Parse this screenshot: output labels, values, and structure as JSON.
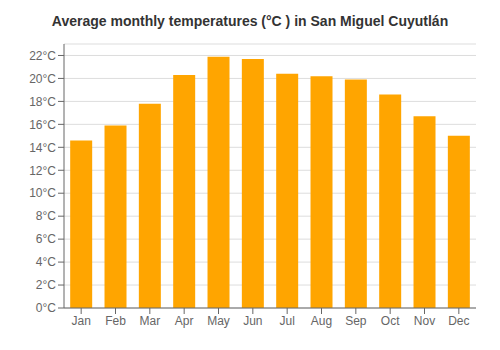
{
  "chart_data": {
    "type": "bar",
    "title": "Average monthly temperatures (°C ) in San Miguel Cuyutlán",
    "categories": [
      "Jan",
      "Feb",
      "Mar",
      "Apr",
      "May",
      "Jun",
      "Jul",
      "Aug",
      "Sep",
      "Oct",
      "Nov",
      "Dec"
    ],
    "values": [
      14.6,
      15.9,
      17.8,
      20.3,
      21.9,
      21.7,
      20.4,
      20.2,
      19.9,
      18.6,
      16.7,
      15.0
    ],
    "color": "#FFA500",
    "ylim": [
      0,
      23
    ],
    "yticks": [
      {
        "value": 0,
        "label": "0°C"
      },
      {
        "value": 2,
        "label": "2°C"
      },
      {
        "value": 4,
        "label": "4°C"
      },
      {
        "value": 6,
        "label": "6°C"
      },
      {
        "value": 8,
        "label": "8°C"
      },
      {
        "value": 10,
        "label": "10°C"
      },
      {
        "value": 12,
        "label": "12°C"
      },
      {
        "value": 14,
        "label": "14°C"
      },
      {
        "value": 16,
        "label": "16°C"
      },
      {
        "value": 18,
        "label": "18°C"
      },
      {
        "value": 20,
        "label": "20°C"
      },
      {
        "value": 22,
        "label": "22°C"
      }
    ],
    "grid": true
  }
}
